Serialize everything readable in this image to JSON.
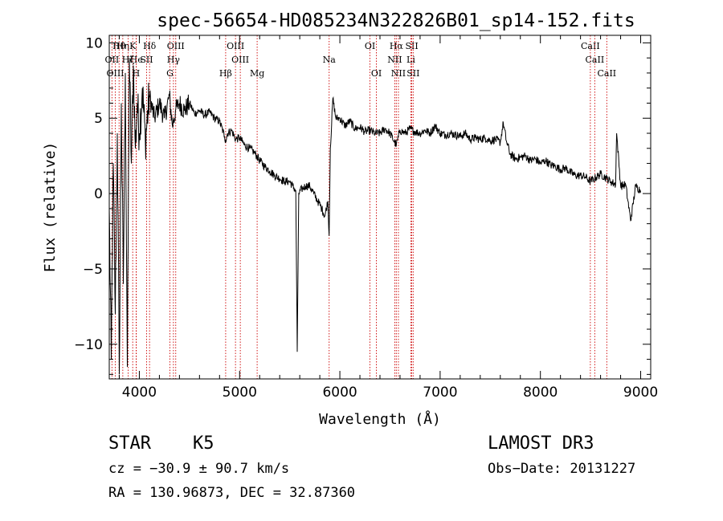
{
  "chart_data": {
    "type": "line",
    "title": "spec-56654-HD085234N322826B01_sp14-152.fits",
    "xlabel": "Wavelength (Å)",
    "ylabel": "Flux (relative)",
    "xlim": [
      3700,
      9100
    ],
    "ylim": [
      -12.3,
      10.5
    ],
    "xticks": [
      4000,
      5000,
      6000,
      7000,
      8000,
      9000
    ],
    "yticks": [
      -10,
      -5,
      0,
      5,
      10
    ],
    "spectrum": {
      "x": [
        3700,
        3720,
        3740,
        3760,
        3780,
        3800,
        3820,
        3840,
        3860,
        3880,
        3900,
        3920,
        3940,
        3960,
        3980,
        4000,
        4030,
        4060,
        4100,
        4150,
        4200,
        4250,
        4300,
        4330,
        4360,
        4400,
        4450,
        4500,
        4550,
        4600,
        4650,
        4700,
        4750,
        4800,
        4850,
        4861,
        4880,
        4920,
        4960,
        5000,
        5050,
        5100,
        5150,
        5170,
        5200,
        5250,
        5300,
        5350,
        5400,
        5450,
        5500,
        5530,
        5560,
        5575,
        5590,
        5620,
        5660,
        5700,
        5740,
        5780,
        5820,
        5850,
        5880,
        5893,
        5905,
        5930,
        5960,
        6000,
        6050,
        6100,
        6150,
        6200,
        6250,
        6300,
        6350,
        6400,
        6450,
        6500,
        6563,
        6600,
        6650,
        6700,
        6750,
        6800,
        6850,
        6900,
        6950,
        7000,
        7050,
        7100,
        7150,
        7200,
        7250,
        7300,
        7350,
        7400,
        7450,
        7500,
        7550,
        7600,
        7630,
        7660,
        7700,
        7750,
        7800,
        7850,
        7900,
        7950,
        8000,
        8050,
        8100,
        8150,
        8200,
        8250,
        8300,
        8350,
        8400,
        8450,
        8498,
        8542,
        8600,
        8662,
        8700,
        8750,
        8760,
        8800,
        8850,
        8900,
        8950,
        9000
      ],
      "y": [
        -1.0,
        -11.0,
        2.0,
        -8.0,
        4.0,
        -12.0,
        6.0,
        -6.0,
        8.0,
        -11.5,
        9.0,
        2.0,
        8.5,
        3.0,
        6.0,
        4.0,
        7.0,
        3.5,
        6.5,
        5.0,
        6.0,
        5.0,
        6.5,
        4.5,
        5.5,
        6.0,
        5.5,
        6.0,
        5.3,
        5.5,
        5.2,
        5.4,
        5.0,
        4.8,
        3.8,
        3.5,
        4.0,
        4.2,
        3.6,
        3.7,
        3.2,
        3.0,
        2.7,
        2.5,
        2.2,
        1.8,
        1.5,
        1.2,
        1.0,
        0.8,
        0.8,
        0.5,
        0.2,
        -10.5,
        0.0,
        0.3,
        0.5,
        0.5,
        0.0,
        -0.5,
        -1.0,
        -1.5,
        -0.5,
        -2.8,
        3.0,
        6.3,
        5.0,
        5.0,
        4.5,
        4.8,
        4.3,
        4.4,
        4.1,
        4.2,
        4.0,
        4.0,
        4.3,
        4.0,
        3.2,
        4.2,
        4.0,
        4.3,
        4.1,
        4.0,
        4.2,
        4.0,
        4.5,
        4.0,
        3.9,
        4.0,
        3.9,
        3.8,
        4.0,
        3.6,
        3.7,
        3.6,
        3.7,
        3.5,
        3.6,
        3.4,
        4.7,
        3.5,
        2.6,
        2.3,
        2.4,
        2.5,
        2.2,
        2.3,
        2.0,
        2.2,
        1.9,
        1.8,
        1.6,
        1.7,
        1.4,
        1.2,
        1.2,
        1.1,
        0.8,
        1.0,
        1.3,
        1.0,
        0.8,
        0.6,
        4.0,
        0.5,
        0.6,
        -1.8,
        0.5,
        0.2
      ]
    },
    "lines": [
      {
        "label": "Hθ",
        "x": 3798,
        "row": 1
      },
      {
        "label": "Hη",
        "x": 3835,
        "row": 1
      },
      {
        "label": "K",
        "x": 3934,
        "row": 1
      },
      {
        "label": "Hδ",
        "x": 4102,
        "row": 1
      },
      {
        "label": "OIII",
        "x": 4363,
        "row": 1
      },
      {
        "label": "OIII",
        "x": 4959,
        "row": 1
      },
      {
        "label": "OI",
        "x": 6300,
        "row": 1
      },
      {
        "label": "Hα",
        "x": 6563,
        "row": 1
      },
      {
        "label": "SII",
        "x": 6717,
        "row": 1
      },
      {
        "label": "CaII",
        "x": 8498,
        "row": 1
      },
      {
        "label": "OII",
        "x": 3727,
        "row": 2
      },
      {
        "label": "Hζ",
        "x": 3889,
        "row": 2
      },
      {
        "label": "He",
        "x": 3970,
        "row": 2
      },
      {
        "label": "SII",
        "x": 4072,
        "row": 2
      },
      {
        "label": "Hγ",
        "x": 4340,
        "row": 2
      },
      {
        "label": "OIII",
        "x": 5007,
        "row": 2
      },
      {
        "label": "Na",
        "x": 5893,
        "row": 2
      },
      {
        "label": "NII",
        "x": 6548,
        "row": 2
      },
      {
        "label": "Li",
        "x": 6708,
        "row": 2
      },
      {
        "label": "CaII",
        "x": 8542,
        "row": 2
      },
      {
        "label": "OIII",
        "x": 3760,
        "row": 3
      },
      {
        "label": "H",
        "x": 3968,
        "row": 3
      },
      {
        "label": "G",
        "x": 4305,
        "row": 3
      },
      {
        "label": "Hβ",
        "x": 4861,
        "row": 3
      },
      {
        "label": "Mg",
        "x": 5175,
        "row": 3
      },
      {
        "label": "OI",
        "x": 6364,
        "row": 3
      },
      {
        "label": "NII",
        "x": 6584,
        "row": 3
      },
      {
        "label": "SII",
        "x": 6731,
        "row": 3
      },
      {
        "label": "CaII",
        "x": 8662,
        "row": 3
      }
    ]
  },
  "info": {
    "class": "STAR",
    "subclass": "K5",
    "survey": "LAMOST DR3",
    "cz": "cz = −30.9 ± 90.7 km/s",
    "obs_date": "Obs−Date: 20131227",
    "coords": "RA = 130.96873, DEC =  32.87360"
  }
}
